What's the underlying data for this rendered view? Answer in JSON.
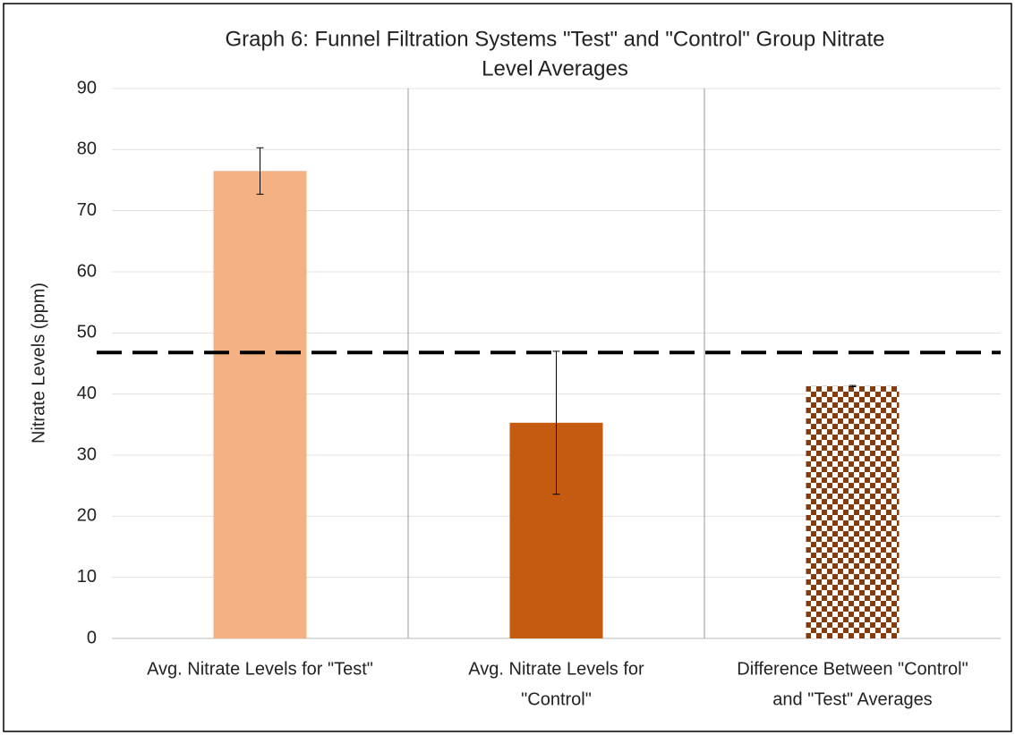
{
  "chart_data": {
    "type": "bar",
    "title": [
      "Graph 6: Funnel Filtration  Systems \"Test\" and \"Control\" Group Nitrate",
      "Level Averages"
    ],
    "y_label": "Nitrate Levels (ppm)",
    "categories": [
      [
        "Avg. Nitrate Levels for \"Test\""
      ],
      [
        "Avg. Nitrate Levels for",
        "\"Control\""
      ],
      [
        "Difference Between \"Control\"",
        "and \"Test\" Averages"
      ]
    ],
    "values": [
      76.5,
      35.3,
      41.3
    ],
    "errors": [
      3.8,
      11.7,
      0.1
    ],
    "colors": [
      "#f4b183",
      "#c55a11",
      "#843c0c"
    ],
    "patterns": [
      "solid",
      "solid",
      "checker"
    ],
    "reference_line": 46.8,
    "ylim": [
      0,
      90
    ],
    "yticks": [
      0,
      10,
      20,
      30,
      40,
      50,
      60,
      70,
      80,
      90
    ],
    "grid": true,
    "vertical_grid": true
  }
}
